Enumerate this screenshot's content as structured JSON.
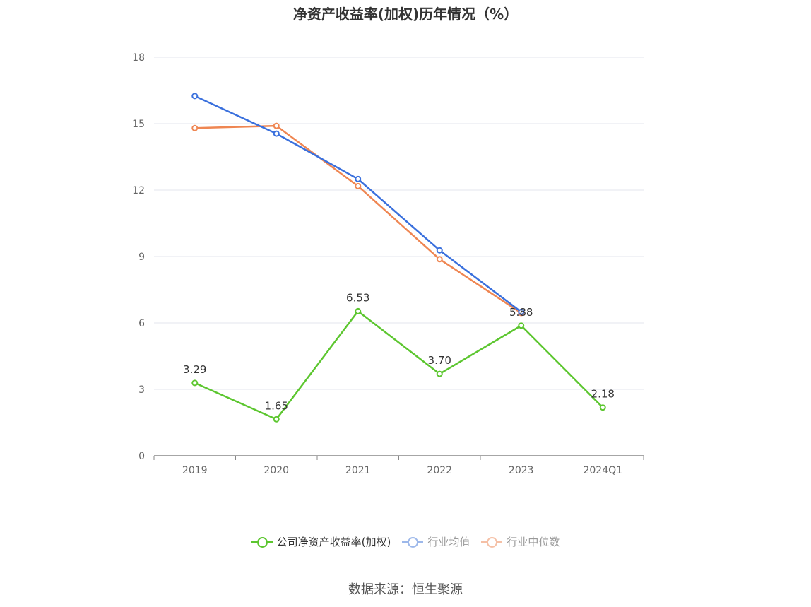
{
  "title": "净资产收益率(加权)历年情况（%）",
  "source": "数据来源：恒生聚源",
  "chart_data": {
    "type": "line",
    "title": "净资产收益率(加权)历年情况（%）",
    "categories": [
      "2019",
      "2020",
      "2021",
      "2022",
      "2023",
      "2024Q1"
    ],
    "ylim": [
      0,
      18
    ],
    "yticks": [
      0,
      3,
      6,
      9,
      12,
      15,
      18
    ],
    "grid": true,
    "legend_position": "bottom",
    "series": [
      {
        "name": "公司净资产收益率(加权)",
        "color": "#5cc62f",
        "values": [
          3.29,
          1.65,
          6.53,
          3.7,
          5.88,
          2.18
        ],
        "labels": [
          "3.29",
          "1.65",
          "6.53",
          "3.70",
          "5.88",
          "2.18"
        ],
        "legend_text_color": "#333333"
      },
      {
        "name": "行业均值",
        "color": "#3a70dd",
        "legend_color": "#9db8ea",
        "values": [
          16.25,
          14.55,
          12.5,
          9.28,
          6.5,
          null
        ],
        "legend_text_color": "#999999"
      },
      {
        "name": "行业中位数",
        "color": "#ef8652",
        "legend_color": "#f5c0a6",
        "values": [
          14.8,
          14.9,
          12.18,
          8.88,
          6.45,
          null
        ],
        "legend_text_color": "#999999"
      }
    ]
  }
}
